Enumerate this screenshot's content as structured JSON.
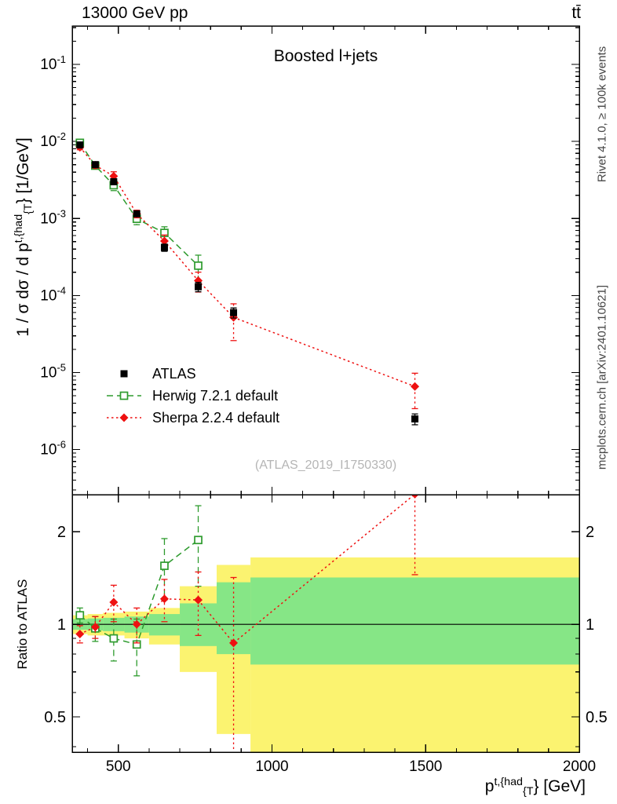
{
  "header": {
    "left": "13000 GeV pp",
    "right": "tt̄"
  },
  "annotations": {
    "watermark": "(ATLAS_2019_I1750330)",
    "right_top": "Rivet 4.1.0, ≥ 100k events",
    "right_bottom": "mcplots.cern.ch [arXiv:2401.10621]"
  },
  "labels": {
    "ylabel_main": {
      "prefix": "1 / σ dσ / d p",
      "sup": "t,{had",
      "sub": "{T",
      "suffix": "} [1/GeV]"
    },
    "ylabel_ratio": "Ratio to ATLAS",
    "xlabel": {
      "prefix": "p",
      "sup": "t,{had",
      "sub": "{T",
      "suffix": "} [GeV]"
    }
  },
  "chart_data": {
    "type": "line",
    "title": "Boosted l+jets",
    "xlabel": "p_T^{t,{had}} [GeV]",
    "ylabel": "1 / sigma dsigma / d p_T^{t,{had}} [1/GeV]",
    "xlim": [
      350,
      2000
    ],
    "xticks": [
      500,
      1000,
      1500,
      2000
    ],
    "xminor_step": 100,
    "legend_position": "left-middle",
    "main": {
      "yscale": "log",
      "ylim": [
        2.6e-07,
        0.316
      ],
      "ytick_exponents": [
        -1,
        -2,
        -3,
        -4,
        -5,
        -6
      ],
      "series": [
        {
          "name": "ATLAS",
          "color": "#000000",
          "marker": "square-filled",
          "linestyle": "none",
          "x": [
            375,
            425,
            485,
            560,
            650,
            760,
            875,
            1465
          ],
          "y": [
            0.009,
            0.005,
            0.003,
            0.00115,
            0.00042,
            0.00013,
            6e-05,
            2.5e-06
          ],
          "yerr": [
            0.0006,
            0.00035,
            0.00025,
            9e-05,
            4.5e-05,
            1.8e-05,
            9e-06,
            4e-07
          ]
        },
        {
          "name": "Herwig 7.2.1 default",
          "color": "#2e9b2e",
          "marker": "square-open",
          "linestyle": "dashed",
          "x": [
            375,
            425,
            485,
            560,
            650,
            760
          ],
          "y": [
            0.0096,
            0.00485,
            0.0027,
            0.00099,
            0.00065,
            0.000244
          ],
          "yerr": [
            0.0007,
            0.00045,
            0.0004,
            0.00016,
            0.00013,
            9e-05
          ]
        },
        {
          "name": "Sherpa 2.2.4 default",
          "color": "#ee1111",
          "marker": "diamond-filled",
          "linestyle": "dotted",
          "x": [
            375,
            425,
            485,
            560,
            650,
            760,
            875,
            1465
          ],
          "y": [
            0.0084,
            0.0049,
            0.00354,
            0.00115,
            0.00051,
            0.000156,
            5.2e-05,
            6.6e-06
          ],
          "yerr": [
            0.0006,
            0.0004,
            0.0005,
            0.00013,
            0.0001,
            4.5e-05,
            2.6e-05,
            3.2e-06
          ]
        }
      ]
    },
    "ratio": {
      "yscale": "log",
      "ylim": [
        0.384,
        2.64
      ],
      "yticks": [
        0.5,
        1,
        2
      ],
      "yticks_minor": [
        0.4,
        0.6,
        0.7,
        0.8,
        0.9
      ],
      "reference": 1,
      "band_colors": {
        "total": "#fbf370",
        "stat": "#86e686"
      },
      "bands": [
        {
          "xlo": 350,
          "xhi": 400,
          "total_lo": 0.93,
          "total_hi": 1.07,
          "stat_lo": 0.96,
          "stat_hi": 1.04
        },
        {
          "xlo": 400,
          "xhi": 450,
          "total_lo": 0.92,
          "total_hi": 1.08,
          "stat_lo": 0.955,
          "stat_hi": 1.045
        },
        {
          "xlo": 450,
          "xhi": 520,
          "total_lo": 0.92,
          "total_hi": 1.09,
          "stat_lo": 0.95,
          "stat_hi": 1.05
        },
        {
          "xlo": 520,
          "xhi": 600,
          "total_lo": 0.9,
          "total_hi": 1.1,
          "stat_lo": 0.94,
          "stat_hi": 1.06
        },
        {
          "xlo": 600,
          "xhi": 700,
          "total_lo": 0.86,
          "total_hi": 1.13,
          "stat_lo": 0.92,
          "stat_hi": 1.08
        },
        {
          "xlo": 700,
          "xhi": 820,
          "total_lo": 0.7,
          "total_hi": 1.33,
          "stat_lo": 0.85,
          "stat_hi": 1.17
        },
        {
          "xlo": 820,
          "xhi": 930,
          "total_lo": 0.44,
          "total_hi": 1.56,
          "stat_lo": 0.8,
          "stat_hi": 1.37
        },
        {
          "xlo": 930,
          "xhi": 2000,
          "total_lo": 0.37,
          "total_hi": 1.65,
          "stat_lo": 0.74,
          "stat_hi": 1.42
        }
      ],
      "series": [
        {
          "name": "Herwig 7.2.1 default",
          "color": "#2e9b2e",
          "marker": "square-open",
          "linestyle": "dashed",
          "x": [
            375,
            425,
            485,
            560,
            650,
            760
          ],
          "y": [
            1.07,
            0.97,
            0.9,
            0.86,
            1.55,
            1.88
          ],
          "yerr": [
            0.06,
            0.09,
            0.14,
            0.18,
            0.35,
            0.55
          ]
        },
        {
          "name": "Sherpa 2.2.4 default",
          "color": "#ee1111",
          "marker": "diamond-filled",
          "linestyle": "dotted",
          "x": [
            375,
            425,
            485,
            560,
            650,
            760,
            875,
            1465
          ],
          "y": [
            0.93,
            0.98,
            1.18,
            1.0,
            1.21,
            1.2,
            0.87,
            2.65
          ],
          "yerr": [
            0.06,
            0.08,
            0.16,
            0.13,
            0.19,
            0.28,
            0.55,
            1.2
          ]
        }
      ]
    }
  }
}
